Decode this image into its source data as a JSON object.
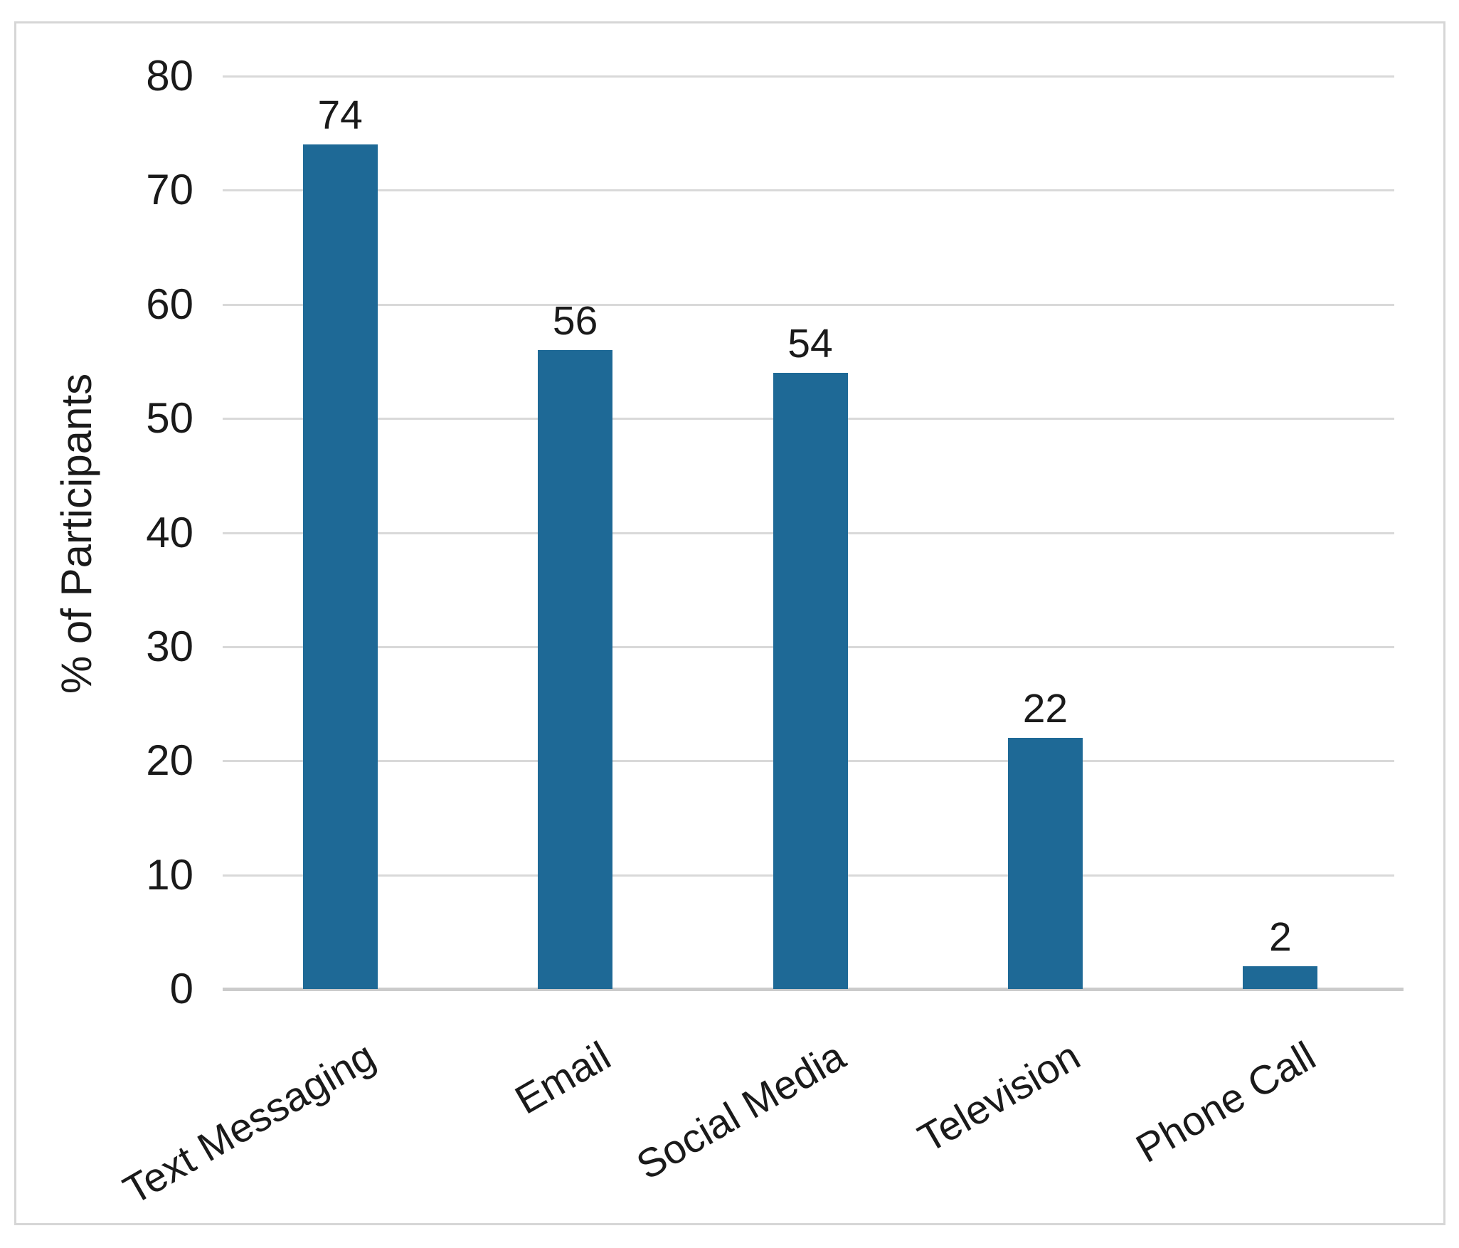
{
  "chart_data": {
    "type": "bar",
    "title": "",
    "xlabel": "",
    "ylabel": "% of Participants",
    "categories": [
      "Text Messaging",
      "Email",
      "Social Media",
      "Television",
      "Phone Call"
    ],
    "values": [
      74,
      56,
      54,
      22,
      2
    ],
    "data_labels": [
      "74",
      "56",
      "54",
      "22",
      "2"
    ],
    "yticks": [
      "0",
      "10",
      "20",
      "30",
      "40",
      "50",
      "60",
      "70",
      "80"
    ],
    "ylim": [
      0,
      80
    ],
    "grid": "horizontal",
    "legend": "none",
    "category_rotation_deg": -30,
    "colors": {
      "bar": "#1E6996",
      "gridline": "#D9D9D9",
      "axis_line": "#CBCBCB",
      "chart_border": "#D6D6D6",
      "text": "#1A1A1A",
      "background": "#FFFFFF"
    }
  }
}
